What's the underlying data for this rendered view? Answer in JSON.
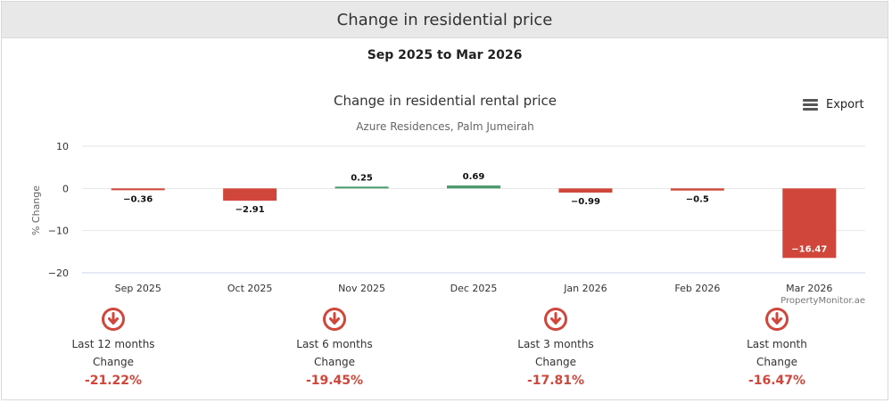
{
  "header": {
    "title": "Change in residential price"
  },
  "date_range": "Sep 2025 to Mar 2026",
  "export": {
    "label": "Export",
    "icon": "menu-icon"
  },
  "colors": {
    "negative": "#d0463a",
    "positive": "#4a9a6e",
    "grid": "#e6e6e6",
    "axis": "#ccd6eb"
  },
  "chart_data": {
    "type": "bar",
    "title": "Change in residential rental price",
    "subtitle": "Azure Residences, Palm Jumeirah",
    "xlabel": "",
    "ylabel": "% Change",
    "categories": [
      "Sep 2025",
      "Oct 2025",
      "Nov 2025",
      "Dec 2025",
      "Jan 2026",
      "Feb 2026",
      "Mar 2026"
    ],
    "values": [
      -0.36,
      -2.91,
      0.25,
      0.69,
      -0.99,
      -0.5,
      -16.47
    ],
    "value_labels": [
      "−0.36",
      "−2.91",
      "0.25",
      "0.69",
      "−0.99",
      "−0.5",
      "−16.47"
    ],
    "ylim": [
      -20,
      10
    ],
    "yticks": [
      10,
      0,
      -10,
      -20
    ],
    "ytick_labels": [
      "10",
      "0",
      "−10",
      "−20"
    ],
    "grid": true,
    "legend": "none",
    "credit": "PropertyMonitor.ae"
  },
  "summary": [
    {
      "period": "Last 12 months",
      "label": "Change",
      "value": "-21.22%",
      "icon": "arrow-down-circle-icon"
    },
    {
      "period": "Last 6 months",
      "label": "Change",
      "value": "-19.45%",
      "icon": "arrow-down-circle-icon"
    },
    {
      "period": "Last 3 months",
      "label": "Change",
      "value": "-17.81%",
      "icon": "arrow-down-circle-icon"
    },
    {
      "period": "Last month",
      "label": "Change",
      "value": "-16.47%",
      "icon": "arrow-down-circle-icon"
    }
  ]
}
